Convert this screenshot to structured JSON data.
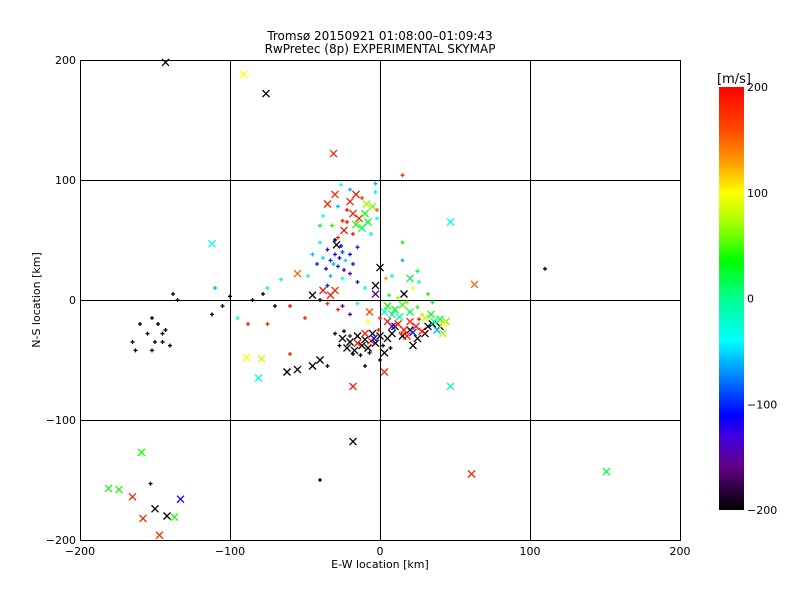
{
  "chart_data": {
    "type": "scatter",
    "title": "Tromsø 20150921 01:08:00–01:09:43",
    "subtitle": "RwPretec (8p) EXPERIMENTAL SKYMAP",
    "xlabel": "E-W location [km]",
    "ylabel": "N-S location [km]",
    "xlim": [
      -200,
      200
    ],
    "ylim": [
      -200,
      200
    ],
    "xticks": [
      "-200",
      "-100",
      "0",
      "100",
      "200"
    ],
    "yticks": [
      "200",
      "100",
      "0",
      "-100",
      "-200"
    ],
    "grid": true,
    "colorbar": {
      "label": "[m/s]",
      "range": [
        -200,
        200
      ],
      "ticks": [
        "200",
        "100",
        "0",
        "-100",
        "-200"
      ],
      "stops": [
        {
          "v": 200,
          "color": "#ff0000"
        },
        {
          "v": 160,
          "color": "#ff4800"
        },
        {
          "v": 128,
          "color": "#ffa000"
        },
        {
          "v": 100,
          "color": "#ffff00"
        },
        {
          "v": 70,
          "color": "#a0ff00"
        },
        {
          "v": 35,
          "color": "#00ff00"
        },
        {
          "v": 0,
          "color": "#00ff90"
        },
        {
          "v": -40,
          "color": "#00ffff"
        },
        {
          "v": -70,
          "color": "#0090ff"
        },
        {
          "v": -110,
          "color": "#0000ff"
        },
        {
          "v": -130,
          "color": "#4000e0"
        },
        {
          "v": -160,
          "color": "#600080"
        },
        {
          "v": -200,
          "color": "#000000"
        }
      ]
    },
    "point_fields": [
      "x_km",
      "y_km",
      "velocity_ms",
      "marker"
    ],
    "points": [
      [
        -143,
        198,
        -200,
        "x"
      ],
      [
        -91,
        188,
        100,
        "x"
      ],
      [
        -76,
        172,
        -200,
        "x"
      ],
      [
        -31,
        122,
        180,
        "x"
      ],
      [
        -112,
        47,
        -40,
        "x"
      ],
      [
        -89,
        -48,
        100,
        "x"
      ],
      [
        -79,
        -49,
        80,
        "x"
      ],
      [
        -81,
        -65,
        -40,
        "x"
      ],
      [
        47,
        65,
        -40,
        "x"
      ],
      [
        63,
        13,
        150,
        "x"
      ],
      [
        47,
        -72,
        -10,
        "x"
      ],
      [
        -18,
        -118,
        -200,
        "x"
      ],
      [
        61,
        -145,
        180,
        "x"
      ],
      [
        151,
        -143,
        20,
        "x"
      ],
      [
        -40,
        -150,
        -200,
        "+"
      ],
      [
        110,
        26,
        -200,
        "+"
      ],
      [
        -181,
        -157,
        40,
        "x"
      ],
      [
        -174,
        -158,
        40,
        "x"
      ],
      [
        -165,
        -164,
        180,
        "x"
      ],
      [
        -158,
        -182,
        180,
        "x"
      ],
      [
        -150,
        -174,
        -200,
        "x"
      ],
      [
        -153,
        -153,
        -200,
        "+"
      ],
      [
        -159,
        -127,
        40,
        "x"
      ],
      [
        -142,
        -180,
        -200,
        "x"
      ],
      [
        -137,
        -181,
        40,
        "x"
      ],
      [
        -133,
        -166,
        -120,
        "x"
      ],
      [
        -147,
        -196,
        180,
        "x"
      ],
      [
        15,
        104,
        180,
        "+"
      ],
      [
        -20,
        82,
        180,
        "x"
      ],
      [
        -16,
        88,
        190,
        "x"
      ],
      [
        -12,
        85,
        170,
        "+"
      ],
      [
        -22,
        75,
        190,
        "+"
      ],
      [
        -18,
        72,
        185,
        "x"
      ],
      [
        -14,
        68,
        175,
        "x"
      ],
      [
        -25,
        66,
        190,
        "+"
      ],
      [
        -10,
        72,
        40,
        "x"
      ],
      [
        -8,
        65,
        30,
        "x"
      ],
      [
        -5,
        78,
        60,
        "x"
      ],
      [
        -12,
        60,
        20,
        "x"
      ],
      [
        -6,
        55,
        -20,
        "+"
      ],
      [
        -24,
        58,
        190,
        "x"
      ],
      [
        -28,
        52,
        180,
        "+"
      ],
      [
        -16,
        63,
        40,
        "x"
      ],
      [
        -3,
        90,
        -10,
        "+"
      ],
      [
        -20,
        92,
        -60,
        "+"
      ],
      [
        -30,
        88,
        180,
        "x"
      ],
      [
        -35,
        80,
        180,
        "x"
      ],
      [
        -26,
        96,
        -40,
        "+"
      ],
      [
        -38,
        70,
        -40,
        "+"
      ],
      [
        -28,
        78,
        -60,
        "+"
      ],
      [
        -40,
        62,
        20,
        "+"
      ],
      [
        -32,
        62,
        40,
        "+"
      ],
      [
        -9,
        80,
        70,
        "x"
      ],
      [
        -2,
        68,
        -30,
        "+"
      ],
      [
        -22,
        65,
        190,
        "+"
      ],
      [
        -18,
        55,
        190,
        "+"
      ],
      [
        -30,
        38,
        -120,
        "+"
      ],
      [
        -27,
        35,
        -110,
        "+"
      ],
      [
        -33,
        33,
        -100,
        "+"
      ],
      [
        -25,
        40,
        -90,
        "+"
      ],
      [
        -35,
        42,
        -120,
        "+"
      ],
      [
        -28,
        28,
        -100,
        "+"
      ],
      [
        -23,
        33,
        -50,
        "+"
      ],
      [
        -31,
        30,
        -60,
        "+"
      ],
      [
        -38,
        35,
        -50,
        "+"
      ],
      [
        -26,
        45,
        -110,
        "+"
      ],
      [
        -20,
        38,
        -130,
        "+"
      ],
      [
        -36,
        26,
        -120,
        "+"
      ],
      [
        -24,
        25,
        -140,
        "+"
      ],
      [
        -29,
        46,
        -200,
        "x"
      ],
      [
        -30,
        50,
        -200,
        "+"
      ],
      [
        -42,
        30,
        -100,
        "+"
      ],
      [
        -45,
        38,
        -60,
        "+"
      ],
      [
        -18,
        30,
        -150,
        "+"
      ],
      [
        -33,
        20,
        -60,
        "+"
      ],
      [
        -20,
        22,
        -130,
        "+"
      ],
      [
        -15,
        44,
        -100,
        "+"
      ],
      [
        -40,
        48,
        -30,
        "+"
      ],
      [
        -48,
        20,
        -20,
        "+"
      ],
      [
        -25,
        18,
        -40,
        "+"
      ],
      [
        -35,
        12,
        -100,
        "+"
      ],
      [
        -15,
        15,
        -120,
        "+"
      ],
      [
        -40,
        0,
        -200,
        "+"
      ],
      [
        -45,
        4,
        -200,
        "x"
      ],
      [
        -38,
        8,
        190,
        "x"
      ],
      [
        -30,
        8,
        180,
        "x"
      ],
      [
        -33,
        4,
        190,
        "x"
      ],
      [
        -35,
        -3,
        180,
        "+"
      ],
      [
        -28,
        -8,
        180,
        "+"
      ],
      [
        -3,
        5,
        -160,
        "x"
      ],
      [
        -7,
        -10,
        160,
        "x"
      ],
      [
        -55,
        22,
        150,
        "x"
      ],
      [
        -66,
        17,
        -10,
        "+"
      ],
      [
        -75,
        10,
        -20,
        "+"
      ],
      [
        -60,
        -5,
        190,
        "+"
      ],
      [
        -50,
        -15,
        180,
        "+"
      ],
      [
        -15,
        -3,
        -40,
        "+"
      ],
      [
        -10,
        10,
        -30,
        "+"
      ],
      [
        -20,
        -12,
        -150,
        "+"
      ],
      [
        -25,
        -5,
        -160,
        "+"
      ],
      [
        -160,
        -20,
        -200,
        "+"
      ],
      [
        -152,
        -15,
        -200,
        "+"
      ],
      [
        -148,
        -20,
        -200,
        "+"
      ],
      [
        -145,
        -28,
        -200,
        "+"
      ],
      [
        -155,
        -28,
        -200,
        "+"
      ],
      [
        -165,
        -35,
        -200,
        "+"
      ],
      [
        -163,
        -42,
        -200,
        "+"
      ],
      [
        -150,
        -35,
        -200,
        "+"
      ],
      [
        -145,
        -35,
        -200,
        "+"
      ],
      [
        -140,
        -38,
        -200,
        "+"
      ],
      [
        -152,
        -42,
        -200,
        "+"
      ],
      [
        -143,
        -25,
        -200,
        "+"
      ],
      [
        -138,
        5,
        -200,
        "+"
      ],
      [
        -135,
        0,
        -200,
        "+"
      ],
      [
        -112,
        -12,
        -200,
        "+"
      ],
      [
        -105,
        -5,
        -200,
        "+"
      ],
      [
        -100,
        3,
        -200,
        "+"
      ],
      [
        -110,
        10,
        -60,
        "+"
      ],
      [
        -95,
        -15,
        -30,
        "+"
      ],
      [
        -85,
        0,
        -200,
        "+"
      ],
      [
        -78,
        5,
        -200,
        "+"
      ],
      [
        -70,
        -5,
        -200,
        "+"
      ],
      [
        -75,
        -20,
        180,
        "+"
      ],
      [
        -88,
        -20,
        190,
        "+"
      ],
      [
        -25,
        -32,
        -200,
        "x"
      ],
      [
        -20,
        -35,
        -200,
        "x"
      ],
      [
        -15,
        -30,
        -200,
        "x"
      ],
      [
        -10,
        -33,
        -200,
        "x"
      ],
      [
        -5,
        -28,
        -200,
        "x"
      ],
      [
        0,
        -30,
        -200,
        "x"
      ],
      [
        -22,
        -40,
        -200,
        "x"
      ],
      [
        -17,
        -42,
        -200,
        "x"
      ],
      [
        -12,
        -38,
        -200,
        "x"
      ],
      [
        -8,
        -40,
        -200,
        "x"
      ],
      [
        -3,
        -36,
        -200,
        "x"
      ],
      [
        -27,
        -38,
        -200,
        "+"
      ],
      [
        -18,
        -45,
        -200,
        "+"
      ],
      [
        -13,
        -46,
        -200,
        "+"
      ],
      [
        -7,
        -44,
        -200,
        "+"
      ],
      [
        2,
        -38,
        -200,
        "+"
      ],
      [
        5,
        -32,
        -200,
        "x"
      ],
      [
        8,
        -28,
        -200,
        "x"
      ],
      [
        -30,
        -28,
        -200,
        "+"
      ],
      [
        -24,
        -26,
        -200,
        "+"
      ],
      [
        -15,
        -36,
        190,
        "x"
      ],
      [
        -10,
        -28,
        190,
        "x"
      ],
      [
        -6,
        -34,
        180,
        "x"
      ],
      [
        -1,
        -25,
        190,
        "+"
      ],
      [
        3,
        -44,
        -200,
        "x"
      ],
      [
        7,
        -40,
        -200,
        "+"
      ],
      [
        -20,
        -30,
        -150,
        "+"
      ],
      [
        -4,
        -32,
        -120,
        "x"
      ],
      [
        10,
        -22,
        -200,
        "x"
      ],
      [
        15,
        -30,
        -200,
        "x"
      ],
      [
        20,
        -25,
        -200,
        "x"
      ],
      [
        25,
        -32,
        -200,
        "x"
      ],
      [
        30,
        -28,
        -200,
        "x"
      ],
      [
        35,
        -20,
        -200,
        "x"
      ],
      [
        40,
        -22,
        -200,
        "x"
      ],
      [
        22,
        -38,
        -200,
        "x"
      ],
      [
        -40,
        -50,
        -200,
        "x"
      ],
      [
        -45,
        -55,
        -200,
        "x"
      ],
      [
        -55,
        -58,
        -200,
        "x"
      ],
      [
        -62,
        -60,
        -200,
        "x"
      ],
      [
        -35,
        -55,
        -200,
        "+"
      ],
      [
        -10,
        -55,
        -200,
        "+"
      ],
      [
        -18,
        -72,
        190,
        "x"
      ],
      [
        3,
        -60,
        180,
        "x"
      ],
      [
        0,
        -50,
        -200,
        "+"
      ],
      [
        -60,
        -45,
        180,
        "+"
      ],
      [
        12,
        -20,
        190,
        "x"
      ],
      [
        16,
        -25,
        190,
        "x"
      ],
      [
        20,
        -18,
        180,
        "x"
      ],
      [
        24,
        -22,
        190,
        "x"
      ],
      [
        28,
        -26,
        190,
        "x"
      ],
      [
        18,
        -30,
        185,
        "x"
      ],
      [
        14,
        -28,
        170,
        "+"
      ],
      [
        26,
        -16,
        190,
        "+"
      ],
      [
        32,
        -22,
        -200,
        "x"
      ],
      [
        36,
        -18,
        -10,
        "x"
      ],
      [
        40,
        -16,
        20,
        "x"
      ],
      [
        44,
        -18,
        60,
        "x"
      ],
      [
        30,
        -15,
        80,
        "x"
      ],
      [
        34,
        -12,
        40,
        "x"
      ],
      [
        38,
        -25,
        -60,
        "x"
      ],
      [
        22,
        -27,
        -100,
        "x"
      ],
      [
        8,
        -22,
        -120,
        "x"
      ],
      [
        42,
        -28,
        70,
        "x"
      ],
      [
        5,
        -18,
        190,
        "x"
      ],
      [
        0,
        -15,
        180,
        "+"
      ],
      [
        5,
        -5,
        40,
        "x"
      ],
      [
        10,
        -8,
        30,
        "x"
      ],
      [
        15,
        -4,
        50,
        "x"
      ],
      [
        20,
        -10,
        20,
        "x"
      ],
      [
        8,
        -12,
        0,
        "x"
      ],
      [
        13,
        -14,
        -10,
        "x"
      ],
      [
        25,
        -6,
        40,
        "+"
      ],
      [
        18,
        -2,
        60,
        "+"
      ],
      [
        3,
        -10,
        -30,
        "x"
      ],
      [
        28,
        -12,
        80,
        "+"
      ],
      [
        12,
        2,
        70,
        "+"
      ],
      [
        6,
        4,
        20,
        "+"
      ],
      [
        16,
        5,
        -200,
        "x"
      ],
      [
        20,
        18,
        20,
        "x"
      ],
      [
        26,
        15,
        -30,
        "+"
      ],
      [
        -3,
        12,
        -200,
        "x"
      ],
      [
        0,
        27,
        -200,
        "x"
      ],
      [
        15,
        33,
        -60,
        "+"
      ],
      [
        22,
        10,
        100,
        "+"
      ],
      [
        32,
        5,
        40,
        "+"
      ],
      [
        35,
        -2,
        20,
        "+"
      ],
      [
        -8,
        -18,
        100,
        "+"
      ],
      [
        15,
        48,
        30,
        "+"
      ],
      [
        8,
        20,
        -20,
        "+"
      ],
      [
        4,
        18,
        130,
        "+"
      ],
      [
        25,
        24,
        20,
        "+"
      ],
      [
        42,
        -20,
        100,
        "x"
      ],
      [
        -2,
        75,
        150,
        "+"
      ],
      [
        -3,
        97,
        -60,
        "+"
      ]
    ]
  }
}
